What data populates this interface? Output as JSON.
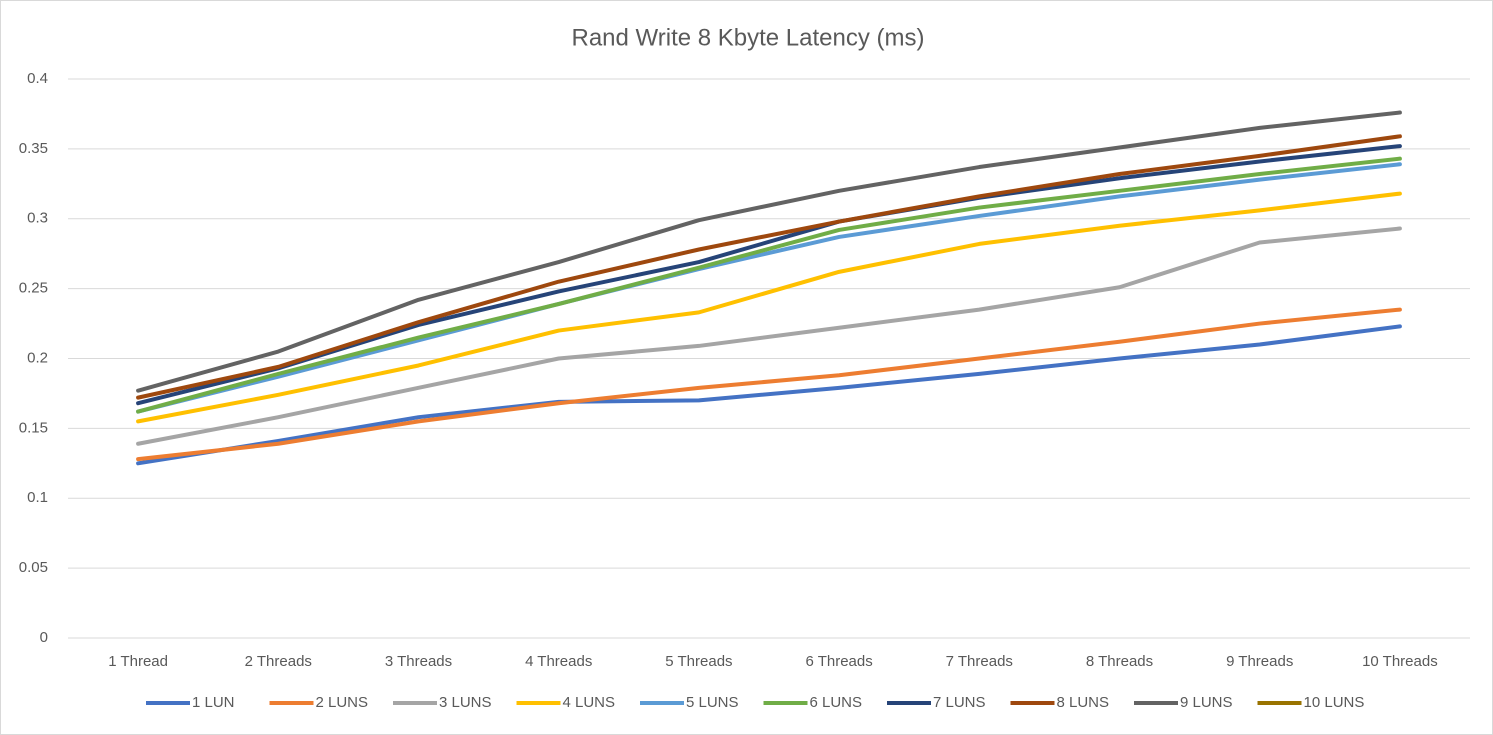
{
  "chart_data": {
    "type": "line",
    "title": "Rand Write 8 Kbyte Latency (ms)",
    "categories": [
      "1 Thread",
      "2 Threads",
      "3 Threads",
      "4 Threads",
      "5 Threads",
      "6 Threads",
      "7 Threads",
      "8 Threads",
      "9 Threads",
      "10 Threads"
    ],
    "series": [
      {
        "name": "1 LUN",
        "color": "#4472c4",
        "values": [
          0.125,
          0.141,
          0.158,
          0.169,
          0.17,
          0.179,
          0.189,
          0.2,
          0.21,
          0.223
        ]
      },
      {
        "name": "2 LUNS",
        "color": "#ed7d31",
        "values": [
          0.128,
          0.139,
          0.155,
          0.168,
          0.179,
          0.188,
          0.2,
          0.212,
          0.225,
          0.235
        ]
      },
      {
        "name": "3 LUNS",
        "color": "#a5a5a5",
        "values": [
          0.139,
          0.158,
          0.179,
          0.2,
          0.209,
          0.222,
          0.235,
          0.251,
          0.283,
          0.293
        ]
      },
      {
        "name": "4 LUNS",
        "color": "#ffc000",
        "values": [
          0.155,
          0.174,
          0.195,
          0.22,
          0.233,
          0.262,
          0.282,
          0.295,
          0.306,
          0.318
        ]
      },
      {
        "name": "5 LUNS",
        "color": "#5b9bd5",
        "values": [
          0.162,
          0.187,
          0.213,
          0.239,
          0.264,
          0.287,
          0.302,
          0.316,
          0.328,
          0.339
        ]
      },
      {
        "name": "6 LUNS",
        "color": "#70ad47",
        "values": [
          0.162,
          0.189,
          0.215,
          0.239,
          0.265,
          0.292,
          0.308,
          0.32,
          0.332,
          0.343
        ]
      },
      {
        "name": "7 LUNS",
        "color": "#264478",
        "values": [
          0.168,
          0.193,
          0.224,
          0.248,
          0.269,
          0.298,
          0.315,
          0.329,
          0.341,
          0.352
        ]
      },
      {
        "name": "8 LUNS",
        "color": "#9e480e",
        "values": [
          0.172,
          0.194,
          0.226,
          0.255,
          0.278,
          0.298,
          0.316,
          0.332,
          0.345,
          0.359
        ]
      },
      {
        "name": "9 LUNS",
        "color": "#636363",
        "values": [
          0.177,
          0.205,
          0.242,
          0.269,
          0.299,
          0.32,
          0.337,
          0.351,
          0.365,
          0.376
        ]
      },
      {
        "name": "10 LUNS",
        "color": "#997300",
        "values": [
          null,
          null,
          null,
          null,
          null,
          null,
          null,
          null,
          null,
          null
        ]
      }
    ],
    "ylim": [
      0,
      0.4
    ],
    "yticks": [
      0,
      0.05,
      0.1,
      0.15,
      0.2,
      0.25,
      0.3,
      0.35,
      0.4
    ],
    "grid": true,
    "legend": "bottom"
  }
}
